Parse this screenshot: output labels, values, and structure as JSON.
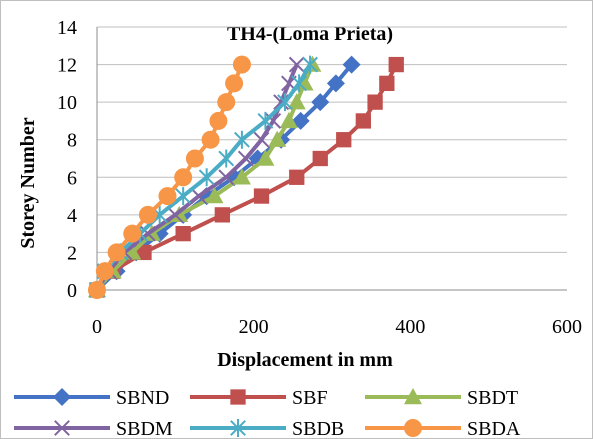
{
  "chart_data": {
    "type": "line",
    "title": "TH4-(Loma Prieta)",
    "xlabel": "Displacement in mm",
    "ylabel": "Storey Number",
    "xlim": [
      0,
      600
    ],
    "ylim": [
      0,
      14
    ],
    "xticks": [
      0,
      200,
      400,
      600
    ],
    "yticks": [
      0,
      2,
      4,
      6,
      8,
      10,
      12,
      14
    ],
    "grid": "horizontal",
    "legend": "bottom",
    "y": [
      0,
      1,
      2,
      3,
      4,
      5,
      6,
      7,
      8,
      9,
      10,
      11,
      12
    ],
    "series": [
      {
        "name": "SBND",
        "color": "#4472C4",
        "marker": "diamond",
        "x": [
          0,
          25,
          50,
          80,
          110,
          140,
          175,
          205,
          235,
          260,
          285,
          305,
          325
        ]
      },
      {
        "name": "SBF",
        "color": "#C0504D",
        "marker": "square",
        "x": [
          0,
          20,
          60,
          110,
          160,
          210,
          255,
          285,
          315,
          340,
          355,
          370,
          382
        ]
      },
      {
        "name": "SBDT",
        "color": "#9BBB59",
        "marker": "triangle",
        "x": [
          0,
          20,
          45,
          70,
          105,
          150,
          185,
          215,
          230,
          245,
          255,
          265,
          275
        ]
      },
      {
        "name": "SBDM",
        "color": "#8064A2",
        "marker": "x",
        "x": [
          0,
          15,
          35,
          65,
          100,
          130,
          165,
          190,
          210,
          225,
          235,
          245,
          255
        ]
      },
      {
        "name": "SBDB",
        "color": "#4BACC6",
        "marker": "star",
        "x": [
          0,
          10,
          30,
          55,
          80,
          110,
          140,
          165,
          185,
          215,
          240,
          258,
          272
        ]
      },
      {
        "name": "SBDA",
        "color": "#F79646",
        "marker": "circle",
        "x": [
          0,
          10,
          25,
          45,
          65,
          90,
          110,
          125,
          145,
          155,
          165,
          175,
          185
        ]
      }
    ]
  }
}
